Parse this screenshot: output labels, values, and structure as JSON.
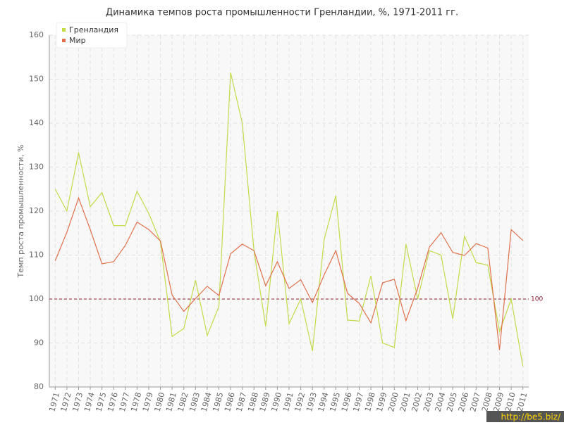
{
  "chart_data": {
    "type": "line",
    "title": "Динамика темпов роста промышленности Гренландии, %, 1971-2011 гг.",
    "y_label": "Темп роста промышленности, %",
    "categories": [
      "1971",
      "1972",
      "1973",
      "1974",
      "1975",
      "1976",
      "1977",
      "1978",
      "1979",
      "1980",
      "1981",
      "1982",
      "1983",
      "1984",
      "1985",
      "1986",
      "1987",
      "1988",
      "1989",
      "1990",
      "1991",
      "1992",
      "1993",
      "1994",
      "1995",
      "1996",
      "1997",
      "1998",
      "1999",
      "2000",
      "2001",
      "2002",
      "2003",
      "2004",
      "2005",
      "2006",
      "2007",
      "2008",
      "2009",
      "2010",
      "2011"
    ],
    "series": [
      {
        "name": "Гренландия",
        "color": "#c3da4a",
        "values": [
          125,
          120,
          133.3,
          121,
          124.2,
          116.7,
          116.7,
          124.5,
          119.5,
          113,
          91.5,
          93.3,
          104.3,
          91.7,
          98.3,
          151.5,
          140,
          111,
          93.8,
          120,
          94.4,
          100,
          88.2,
          113.5,
          123.5,
          95.2,
          95,
          105.3,
          90,
          89,
          112.5,
          100,
          111,
          110,
          95.5,
          114.3,
          108.3,
          107.7,
          92.6,
          100,
          84.7
        ]
      },
      {
        "name": "Мир",
        "color": "#e0704c",
        "values": [
          108.7,
          115.2,
          123,
          115.8,
          108,
          108.5,
          112.2,
          117.5,
          115.8,
          113.2,
          100.9,
          97.2,
          100.1,
          102.9,
          100.8,
          110.3,
          112.5,
          111,
          103,
          108.5,
          102.4,
          104.4,
          99.2,
          105.5,
          111,
          101.3,
          99,
          94.6,
          103.7,
          104.5,
          95.1,
          102.5,
          111.8,
          115.1,
          110.6,
          109.9,
          112.6,
          111.6,
          88.4,
          115.8,
          113.3
        ]
      }
    ],
    "reference_line": 100,
    "ylim": [
      80,
      160
    ],
    "yticks": [
      80,
      90,
      100,
      110,
      120,
      130,
      140,
      150,
      160
    ],
    "grid": true,
    "legend": "top-left",
    "watermark": "http://be5.biz/"
  }
}
